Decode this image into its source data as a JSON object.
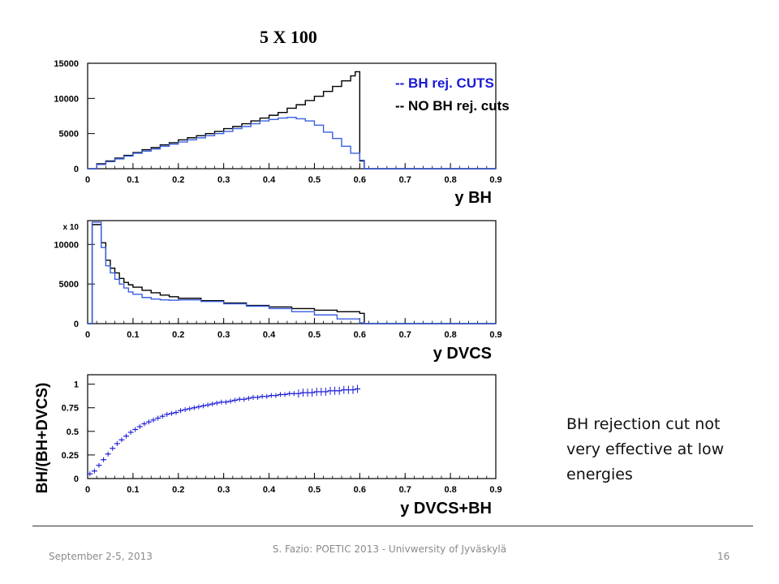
{
  "slide": {
    "title": "5 X 100",
    "legend": [
      {
        "label": "-- BH rej. CUTS",
        "color": "#1a1ad6"
      },
      {
        "label": "-- NO BH rej. cuts",
        "color": "#000000"
      }
    ],
    "note": "BH rejection cut not very effective at low energies",
    "footer": {
      "left": "September 2-5, 2013",
      "center": "S. Fazio: POETIC 2013 - Univwersity of Jyväskylä",
      "right": "16"
    }
  },
  "chart_data": [
    {
      "type": "line",
      "xlabel": "y BH",
      "ylabel": "",
      "xlim": [
        0,
        0.9
      ],
      "ylim": [
        0,
        15000
      ],
      "x_ticks": [
        "0",
        "0.1",
        "0.2",
        "0.3",
        "0.4",
        "0.5",
        "0.6",
        "0.7",
        "0.8",
        "0.9"
      ],
      "y_ticks": [
        "0",
        "5000",
        "10000",
        "15000"
      ],
      "series": [
        {
          "name": "-- NO BH rej. cuts",
          "color": "#000000",
          "x": [
            0,
            0.02,
            0.04,
            0.06,
            0.08,
            0.1,
            0.12,
            0.14,
            0.16,
            0.18,
            0.2,
            0.22,
            0.24,
            0.26,
            0.28,
            0.3,
            0.32,
            0.34,
            0.36,
            0.38,
            0.4,
            0.42,
            0.44,
            0.46,
            0.48,
            0.5,
            0.52,
            0.54,
            0.56,
            0.58,
            0.59,
            0.6,
            0.61,
            0.9
          ],
          "values": [
            0,
            700,
            1100,
            1500,
            1900,
            2300,
            2700,
            3000,
            3400,
            3700,
            4100,
            4400,
            4700,
            5000,
            5300,
            5700,
            6000,
            6400,
            6800,
            7200,
            7600,
            8000,
            8600,
            9100,
            9700,
            10300,
            11000,
            11700,
            12500,
            13200,
            13800,
            1100,
            0,
            0
          ]
        },
        {
          "name": "-- BH rej. CUTS",
          "color": "#3a5fe0",
          "x": [
            0,
            0.02,
            0.04,
            0.06,
            0.08,
            0.1,
            0.12,
            0.14,
            0.16,
            0.18,
            0.2,
            0.22,
            0.24,
            0.26,
            0.28,
            0.3,
            0.32,
            0.34,
            0.36,
            0.38,
            0.4,
            0.42,
            0.44,
            0.46,
            0.48,
            0.5,
            0.52,
            0.54,
            0.56,
            0.58,
            0.6,
            0.61,
            0.9
          ],
          "values": [
            0,
            600,
            1000,
            1400,
            1800,
            2200,
            2500,
            2800,
            3200,
            3500,
            3800,
            4100,
            4400,
            4700,
            5000,
            5300,
            5700,
            6000,
            6400,
            6800,
            7000,
            7200,
            7300,
            7100,
            6800,
            6200,
            5200,
            4300,
            3200,
            2200,
            1200,
            0,
            0
          ]
        }
      ]
    },
    {
      "type": "line",
      "xlabel": "y DVCS",
      "ylabel": "",
      "xlim": [
        0,
        0.9
      ],
      "ylim": [
        0,
        13000
      ],
      "y_multiplier": "x 10",
      "x_ticks": [
        "0",
        "0.1",
        "0.2",
        "0.3",
        "0.4",
        "0.5",
        "0.6",
        "0.7",
        "0.8",
        "0.9"
      ],
      "y_ticks": [
        "0",
        "5000",
        "10000"
      ],
      "series": [
        {
          "name": "-- NO BH rej. cuts",
          "color": "#000000",
          "x": [
            0,
            0.01,
            0.02,
            0.03,
            0.04,
            0.05,
            0.06,
            0.07,
            0.08,
            0.09,
            0.1,
            0.12,
            0.14,
            0.16,
            0.18,
            0.2,
            0.25,
            0.3,
            0.35,
            0.4,
            0.45,
            0.5,
            0.55,
            0.6,
            0.61,
            0.9
          ],
          "values": [
            0,
            12500,
            12500,
            10200,
            8000,
            7000,
            6400,
            5700,
            5200,
            4900,
            4600,
            4200,
            3900,
            3600,
            3400,
            3200,
            2900,
            2600,
            2300,
            2100,
            1900,
            1700,
            1500,
            1300,
            0,
            0
          ]
        },
        {
          "name": "-- BH rej. CUTS",
          "color": "#3a5fe0",
          "x": [
            0,
            0.01,
            0.02,
            0.03,
            0.04,
            0.05,
            0.06,
            0.07,
            0.08,
            0.09,
            0.1,
            0.12,
            0.14,
            0.16,
            0.18,
            0.2,
            0.25,
            0.3,
            0.35,
            0.4,
            0.45,
            0.5,
            0.55,
            0.6,
            0.61,
            0.9
          ],
          "values": [
            0,
            12800,
            12800,
            9600,
            7300,
            6400,
            5600,
            5000,
            4500,
            4000,
            3700,
            3300,
            3100,
            3000,
            2950,
            3000,
            2800,
            2500,
            2200,
            1900,
            1500,
            1100,
            600,
            100,
            0,
            0
          ]
        }
      ]
    },
    {
      "type": "scatter",
      "xlabel": "y DVCS+BH",
      "ylabel": "BH/(BH+DVCS)",
      "xlim": [
        0,
        0.9
      ],
      "ylim": [
        0,
        1.1
      ],
      "x_ticks": [
        "0",
        "0.1",
        "0.2",
        "0.3",
        "0.4",
        "0.5",
        "0.6",
        "0.7",
        "0.8",
        "0.9"
      ],
      "y_ticks": [
        "0",
        "0.25",
        "0.5",
        "0.75",
        "1"
      ],
      "series": [
        {
          "name": "",
          "color": "#1a1ad6",
          "x": [
            0.005,
            0.015,
            0.025,
            0.035,
            0.045,
            0.055,
            0.065,
            0.075,
            0.085,
            0.095,
            0.105,
            0.115,
            0.125,
            0.135,
            0.145,
            0.155,
            0.165,
            0.175,
            0.185,
            0.195,
            0.205,
            0.215,
            0.225,
            0.235,
            0.245,
            0.255,
            0.265,
            0.275,
            0.285,
            0.295,
            0.305,
            0.315,
            0.325,
            0.335,
            0.345,
            0.355,
            0.365,
            0.375,
            0.385,
            0.395,
            0.405,
            0.415,
            0.425,
            0.435,
            0.445,
            0.455,
            0.465,
            0.475,
            0.485,
            0.495,
            0.505,
            0.515,
            0.525,
            0.535,
            0.545,
            0.555,
            0.565,
            0.575,
            0.585,
            0.595
          ],
          "values": [
            0.05,
            0.08,
            0.14,
            0.2,
            0.26,
            0.32,
            0.37,
            0.41,
            0.45,
            0.49,
            0.52,
            0.55,
            0.58,
            0.6,
            0.62,
            0.64,
            0.66,
            0.68,
            0.69,
            0.7,
            0.72,
            0.73,
            0.74,
            0.75,
            0.76,
            0.77,
            0.78,
            0.79,
            0.8,
            0.81,
            0.81,
            0.82,
            0.83,
            0.84,
            0.84,
            0.85,
            0.86,
            0.86,
            0.87,
            0.87,
            0.88,
            0.88,
            0.89,
            0.89,
            0.9,
            0.9,
            0.9,
            0.91,
            0.91,
            0.91,
            0.92,
            0.92,
            0.92,
            0.93,
            0.93,
            0.93,
            0.94,
            0.94,
            0.94,
            0.95
          ]
        }
      ]
    }
  ]
}
